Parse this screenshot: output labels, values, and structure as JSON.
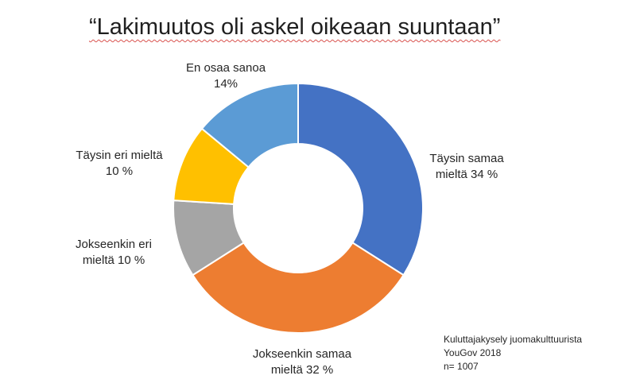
{
  "title": "“Lakimuutos oli askel oikeaan suuntaan”",
  "chart_data": {
    "type": "pie",
    "donut": true,
    "legend": "none",
    "slices": [
      {
        "id": "taysin-samaa",
        "line1": "Täysin samaa",
        "line2": "mieltä 34 %",
        "value": 34,
        "color": "#4472C4"
      },
      {
        "id": "jokseenkin-samaa",
        "line1": "Jokseenkin samaa",
        "line2": "mieltä 32 %",
        "value": 32,
        "color": "#ED7D31"
      },
      {
        "id": "jokseenkin-eri",
        "line1": "Jokseenkin eri",
        "line2": "mieltä 10 %",
        "value": 10,
        "color": "#A5A5A5"
      },
      {
        "id": "taysin-eri",
        "line1": "Täysin eri mieltä",
        "line2": "10 %",
        "value": 10,
        "color": "#FFC000"
      },
      {
        "id": "en-osaa",
        "line1": "En osaa sanoa",
        "line2": "14%",
        "value": 14,
        "color": "#5B9BD5"
      }
    ]
  },
  "source": {
    "line1": "Kuluttajakysely juomakulttuurista",
    "line2": "YouGov 2018",
    "line3": "n= 1007"
  }
}
